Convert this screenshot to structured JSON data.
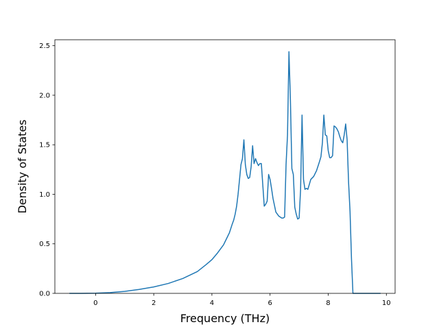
{
  "chart_data": {
    "type": "line",
    "title": "",
    "xlabel": "Frequency (THz)",
    "ylabel": "Density of States",
    "xlim": [
      -1.4,
      10.3
    ],
    "ylim": [
      0.0,
      2.56
    ],
    "xticks": [
      0,
      2,
      4,
      6,
      8,
      10
    ],
    "xtick_labels": [
      "0",
      "2",
      "4",
      "6",
      "8",
      "10"
    ],
    "yticks": [
      0.0,
      0.5,
      1.0,
      1.5,
      2.0,
      2.5
    ],
    "ytick_labels": [
      "0.0",
      "0.5",
      "1.0",
      "1.5",
      "2.0",
      "2.5"
    ],
    "grid": false,
    "color": "#1f77b4",
    "series": [
      {
        "x": [
          -0.9,
          -0.5,
          0.0,
          0.5,
          1.0,
          1.5,
          2.0,
          2.5,
          3.0,
          3.5,
          3.8,
          4.0,
          4.2,
          4.4,
          4.5,
          4.6,
          4.7,
          4.75,
          4.8,
          4.85,
          4.9,
          4.95,
          5.0,
          5.05,
          5.1,
          5.15,
          5.2,
          5.25,
          5.3,
          5.35,
          5.4,
          5.45,
          5.5,
          5.55,
          5.6,
          5.65,
          5.7,
          5.8,
          5.85,
          5.9,
          5.95,
          6.0,
          6.05,
          6.1,
          6.2,
          6.3,
          6.4,
          6.45,
          6.5,
          6.55,
          6.6,
          6.65,
          6.7,
          6.75,
          6.8,
          6.85,
          6.9,
          6.95,
          7.0,
          7.05,
          7.1,
          7.15,
          7.2,
          7.25,
          7.3,
          7.4,
          7.5,
          7.6,
          7.7,
          7.75,
          7.8,
          7.85,
          7.9,
          7.95,
          8.0,
          8.05,
          8.1,
          8.15,
          8.2,
          8.25,
          8.3,
          8.35,
          8.4,
          8.45,
          8.5,
          8.55,
          8.6,
          8.65,
          8.7,
          8.75,
          8.8,
          8.85,
          8.9,
          8.95,
          9.0,
          9.5,
          9.8
        ],
        "y": [
          0.0,
          0.0,
          0.002,
          0.008,
          0.02,
          0.04,
          0.065,
          0.1,
          0.15,
          0.22,
          0.29,
          0.34,
          0.41,
          0.49,
          0.55,
          0.61,
          0.7,
          0.74,
          0.8,
          0.88,
          1.0,
          1.15,
          1.3,
          1.36,
          1.55,
          1.3,
          1.2,
          1.16,
          1.17,
          1.28,
          1.49,
          1.31,
          1.36,
          1.32,
          1.29,
          1.31,
          1.31,
          0.88,
          0.9,
          0.93,
          1.2,
          1.15,
          1.06,
          0.96,
          0.82,
          0.78,
          0.76,
          0.76,
          0.77,
          1.3,
          1.6,
          2.44,
          1.95,
          1.26,
          1.2,
          0.87,
          0.8,
          0.75,
          0.76,
          1.05,
          1.8,
          1.15,
          1.05,
          1.06,
          1.05,
          1.15,
          1.18,
          1.24,
          1.33,
          1.38,
          1.52,
          1.8,
          1.6,
          1.59,
          1.44,
          1.37,
          1.37,
          1.39,
          1.69,
          1.68,
          1.66,
          1.63,
          1.58,
          1.54,
          1.52,
          1.6,
          1.71,
          1.55,
          1.12,
          0.83,
          0.35,
          0.0,
          0.0,
          0.0,
          0.0,
          0.0,
          0.0
        ]
      }
    ]
  }
}
